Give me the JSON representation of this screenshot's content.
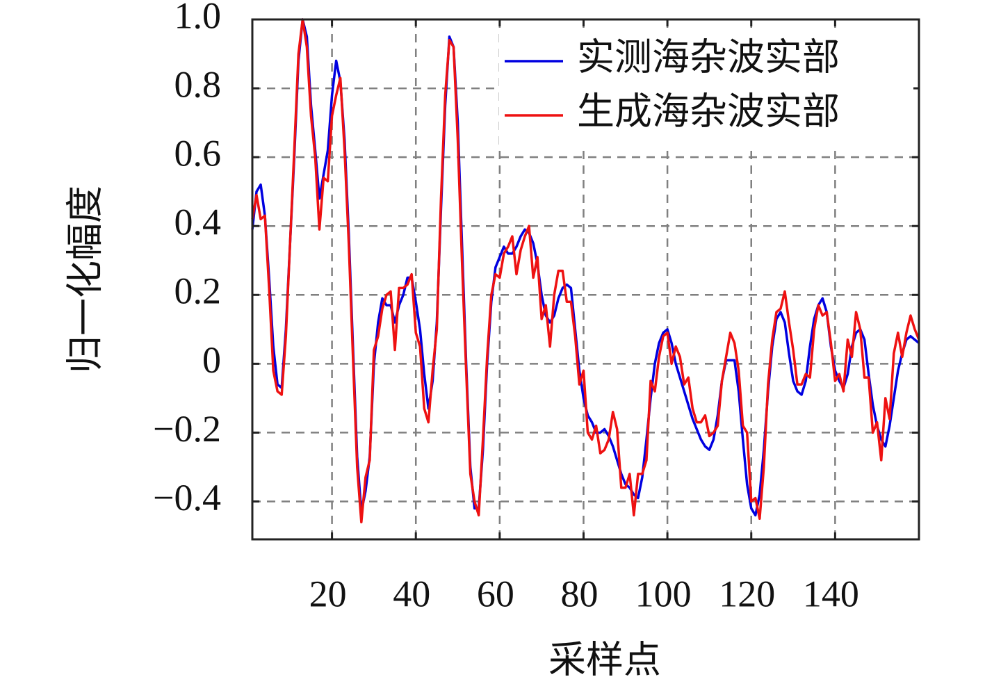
{
  "chart_data": {
    "type": "line",
    "xlabel": "采样点",
    "ylabel": "归一化幅度",
    "x": [
      1,
      2,
      3,
      4,
      5,
      6,
      7,
      8,
      9,
      10,
      11,
      12,
      13,
      14,
      15,
      16,
      17,
      18,
      19,
      20,
      21,
      22,
      23,
      24,
      25,
      26,
      27,
      28,
      29,
      30,
      31,
      32,
      33,
      34,
      35,
      36,
      37,
      38,
      39,
      40,
      41,
      42,
      43,
      44,
      45,
      46,
      47,
      48,
      49,
      50,
      51,
      52,
      53,
      54,
      55,
      56,
      57,
      58,
      59,
      60,
      61,
      62,
      63,
      64,
      65,
      66,
      67,
      68,
      69,
      70,
      71,
      72,
      73,
      74,
      75,
      76,
      77,
      78,
      79,
      80,
      81,
      82,
      83,
      84,
      85,
      86,
      87,
      88,
      89,
      90,
      91,
      92,
      93,
      94,
      95,
      96,
      97,
      98,
      99,
      100,
      101,
      102,
      103,
      104,
      105,
      106,
      107,
      108,
      109,
      110,
      111,
      112,
      113,
      114,
      115,
      116,
      117,
      118,
      119,
      120,
      121,
      122,
      123,
      124,
      125,
      126,
      127,
      128,
      129,
      130,
      131,
      132,
      133,
      134,
      135,
      136,
      137,
      138,
      139,
      140,
      141,
      142,
      143,
      144,
      145,
      146,
      147,
      148,
      149,
      150,
      151,
      152,
      153,
      154,
      155,
      156,
      157,
      158,
      159,
      160
    ],
    "series": [
      {
        "name": "实测海杂波实部",
        "color": "#0000e0",
        "values": [
          0.39,
          0.5,
          0.52,
          0.43,
          0.25,
          0.05,
          -0.06,
          -0.07,
          0.1,
          0.35,
          0.6,
          0.88,
          1.0,
          0.95,
          0.75,
          0.62,
          0.48,
          0.55,
          0.62,
          0.78,
          0.88,
          0.82,
          0.65,
          0.38,
          0.05,
          -0.27,
          -0.43,
          -0.37,
          -0.27,
          0.0,
          0.12,
          0.19,
          0.17,
          0.17,
          0.12,
          0.17,
          0.2,
          0.25,
          0.25,
          0.18,
          0.1,
          -0.03,
          -0.13,
          -0.05,
          0.12,
          0.45,
          0.75,
          0.95,
          0.92,
          0.7,
          0.35,
          0.0,
          -0.3,
          -0.42,
          -0.42,
          -0.25,
          0.0,
          0.18,
          0.28,
          0.31,
          0.34,
          0.32,
          0.32,
          0.34,
          0.37,
          0.39,
          0.38,
          0.35,
          0.29,
          0.2,
          0.14,
          0.12,
          0.14,
          0.19,
          0.22,
          0.23,
          0.22,
          0.1,
          -0.02,
          -0.1,
          -0.15,
          -0.17,
          -0.2,
          -0.2,
          -0.19,
          -0.21,
          -0.24,
          -0.28,
          -0.32,
          -0.35,
          -0.36,
          -0.38,
          -0.39,
          -0.33,
          -0.22,
          -0.1,
          0.0,
          0.06,
          0.09,
          0.1,
          0.06,
          0.0,
          -0.04,
          -0.08,
          -0.12,
          -0.16,
          -0.19,
          -0.22,
          -0.24,
          -0.25,
          -0.22,
          -0.15,
          -0.05,
          0.01,
          0.01,
          0.01,
          -0.08,
          -0.22,
          -0.35,
          -0.42,
          -0.44,
          -0.38,
          -0.25,
          -0.08,
          0.05,
          0.13,
          0.15,
          0.12,
          0.03,
          -0.05,
          -0.08,
          -0.09,
          -0.05,
          0.05,
          0.13,
          0.17,
          0.19,
          0.15,
          0.05,
          -0.02,
          -0.05,
          -0.07,
          -0.03,
          0.05,
          0.09,
          0.1,
          0.07,
          -0.03,
          -0.12,
          -0.18,
          -0.22,
          -0.24,
          -0.18,
          -0.1,
          -0.02,
          0.03,
          0.07,
          0.08,
          0.07,
          0.06
        ]
      },
      {
        "name": "生成海杂波实部",
        "color": "#ee1111",
        "values": [
          0.42,
          0.49,
          0.42,
          0.43,
          0.22,
          -0.02,
          -0.08,
          -0.09,
          0.08,
          0.35,
          0.62,
          0.9,
          1.0,
          0.92,
          0.72,
          0.6,
          0.39,
          0.54,
          0.53,
          0.72,
          0.78,
          0.83,
          0.62,
          0.35,
          0.02,
          -0.3,
          -0.46,
          -0.33,
          -0.28,
          0.04,
          0.08,
          0.16,
          0.2,
          0.21,
          0.04,
          0.22,
          0.22,
          0.23,
          0.26,
          0.09,
          0.05,
          -0.13,
          -0.17,
          -0.02,
          0.1,
          0.48,
          0.78,
          0.94,
          0.92,
          0.65,
          0.3,
          -0.02,
          -0.32,
          -0.4,
          -0.44,
          -0.22,
          0.02,
          0.2,
          0.26,
          0.25,
          0.32,
          0.34,
          0.37,
          0.26,
          0.33,
          0.37,
          0.4,
          0.25,
          0.31,
          0.13,
          0.17,
          0.05,
          0.2,
          0.27,
          0.27,
          0.18,
          0.18,
          0.08,
          -0.06,
          -0.02,
          -0.2,
          -0.22,
          -0.18,
          -0.26,
          -0.25,
          -0.22,
          -0.14,
          -0.19,
          -0.36,
          -0.36,
          -0.32,
          -0.44,
          -0.32,
          -0.32,
          -0.28,
          -0.05,
          -0.08,
          0.02,
          0.08,
          0.09,
          0.0,
          0.05,
          0.02,
          -0.06,
          -0.04,
          -0.13,
          -0.17,
          -0.17,
          -0.15,
          -0.21,
          -0.2,
          -0.18,
          -0.05,
          0.02,
          0.09,
          0.06,
          -0.02,
          -0.18,
          -0.2,
          -0.4,
          -0.39,
          -0.45,
          -0.3,
          -0.06,
          0.07,
          0.15,
          0.16,
          0.21,
          0.12,
          0.04,
          -0.06,
          -0.06,
          -0.03,
          -0.04,
          0.1,
          0.17,
          0.14,
          0.15,
          0.06,
          -0.05,
          -0.03,
          -0.08,
          0.07,
          0.02,
          0.15,
          0.1,
          -0.04,
          -0.04,
          -0.2,
          -0.17,
          -0.28,
          -0.1,
          -0.16,
          0.03,
          0.09,
          0.02,
          0.09,
          0.14,
          0.1,
          0.07
        ]
      }
    ],
    "xlim": [
      1,
      160
    ],
    "xticks": [
      20,
      40,
      60,
      80,
      100,
      120,
      140
    ],
    "ylim": [
      -0.51,
      1.0
    ],
    "yticks": [
      {
        "value": -0.4,
        "label": "−0.4"
      },
      {
        "value": -0.2,
        "label": "−0.2"
      },
      0,
      0.2,
      0.4,
      0.6,
      0.8,
      {
        "value": 1,
        "label": "1.0"
      }
    ],
    "grid": true,
    "legend": "upper right"
  }
}
